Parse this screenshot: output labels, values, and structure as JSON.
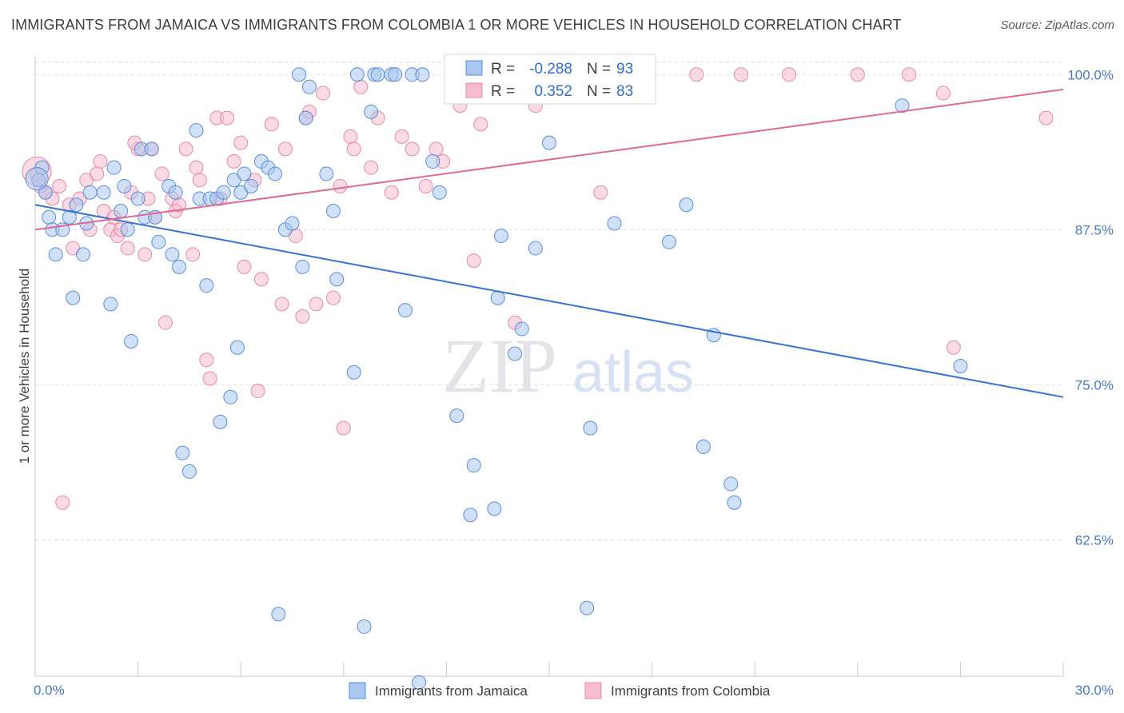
{
  "chart_data": {
    "type": "scatter",
    "title": "IMMIGRANTS FROM JAMAICA VS IMMIGRANTS FROM COLOMBIA 1 OR MORE VEHICLES IN HOUSEHOLD CORRELATION CHART",
    "source": "Source: ZipAtlas.com",
    "xlabel": "",
    "ylabel": "1 or more Vehicles in Household",
    "xlim": [
      0,
      30
    ],
    "ylim": [
      51.5,
      101.5
    ],
    "x_tick_labels": [
      "0.0%",
      "30.0%"
    ],
    "y_ticks": [
      62.5,
      75.0,
      87.5,
      100.0
    ],
    "y_tick_labels": [
      "62.5%",
      "75.0%",
      "87.5%",
      "100.0%"
    ],
    "watermark": {
      "zip": "ZIP",
      "atlas": "atlas"
    },
    "colors": {
      "jamaica_fill": "#a9c6f0",
      "jamaica_stroke": "#5b8fd9",
      "jamaica_line": "#3473d1",
      "colombia_fill": "#f6bccd",
      "colombia_stroke": "#e58aa6",
      "colombia_line": "#e06892",
      "grid": "#dcdce4"
    },
    "legend": {
      "r_label": "R =",
      "n_label": "N =",
      "entries": [
        {
          "r": "-0.288",
          "n": "93"
        },
        {
          "r": "0.352",
          "n": "83"
        }
      ]
    },
    "series": [
      {
        "name": "Immigrants from Jamaica",
        "trend": {
          "x": [
            0,
            30
          ],
          "y": [
            89.5,
            74.0
          ]
        },
        "points": [
          [
            0.1,
            91.5
          ],
          [
            0.3,
            90.5
          ],
          [
            0.4,
            88.5
          ],
          [
            0.5,
            87.5
          ],
          [
            0.6,
            85.5
          ],
          [
            0.8,
            87.5
          ],
          [
            1.0,
            88.5
          ],
          [
            1.1,
            82
          ],
          [
            1.2,
            89.5
          ],
          [
            1.4,
            85.5
          ],
          [
            1.5,
            88
          ],
          [
            1.6,
            90.5
          ],
          [
            2.0,
            90.5
          ],
          [
            2.2,
            81.5
          ],
          [
            2.3,
            92.5
          ],
          [
            2.5,
            89
          ],
          [
            2.6,
            91
          ],
          [
            2.7,
            87.5
          ],
          [
            2.8,
            78.5
          ],
          [
            3.0,
            90
          ],
          [
            3.1,
            94
          ],
          [
            3.2,
            88.5
          ],
          [
            3.4,
            94
          ],
          [
            3.5,
            88.5
          ],
          [
            3.6,
            86.5
          ],
          [
            3.9,
            91
          ],
          [
            4.0,
            85.5
          ],
          [
            4.1,
            90.5
          ],
          [
            4.2,
            84.5
          ],
          [
            4.3,
            69.5
          ],
          [
            4.5,
            68
          ],
          [
            4.7,
            95.5
          ],
          [
            4.8,
            90
          ],
          [
            5.0,
            83
          ],
          [
            5.1,
            90
          ],
          [
            5.3,
            90
          ],
          [
            5.4,
            72
          ],
          [
            5.5,
            90.5
          ],
          [
            5.7,
            74
          ],
          [
            5.8,
            91.5
          ],
          [
            5.9,
            78
          ],
          [
            6.0,
            90.5
          ],
          [
            6.1,
            92
          ],
          [
            6.3,
            91
          ],
          [
            6.6,
            93
          ],
          [
            6.8,
            92.5
          ],
          [
            7.0,
            92
          ],
          [
            7.1,
            56.5
          ],
          [
            7.3,
            87.5
          ],
          [
            7.5,
            88
          ],
          [
            7.7,
            100
          ],
          [
            7.8,
            84.5
          ],
          [
            7.9,
            96.5
          ],
          [
            8.0,
            99
          ],
          [
            8.5,
            92
          ],
          [
            8.7,
            89
          ],
          [
            8.8,
            83.5
          ],
          [
            9.3,
            76
          ],
          [
            9.4,
            100
          ],
          [
            9.6,
            55.5
          ],
          [
            9.8,
            97
          ],
          [
            9.9,
            100
          ],
          [
            10.0,
            100
          ],
          [
            10.4,
            100
          ],
          [
            10.5,
            100
          ],
          [
            10.8,
            81
          ],
          [
            11.0,
            100
          ],
          [
            11.2,
            51
          ],
          [
            11.3,
            100
          ],
          [
            11.6,
            93
          ],
          [
            11.8,
            90.5
          ],
          [
            12.3,
            72.5
          ],
          [
            12.7,
            64.5
          ],
          [
            12.8,
            68.5
          ],
          [
            13.4,
            65
          ],
          [
            13.5,
            82
          ],
          [
            13.6,
            87
          ],
          [
            14.0,
            77.5
          ],
          [
            14.2,
            79.5
          ],
          [
            14.6,
            86
          ],
          [
            15.0,
            94.5
          ],
          [
            16.1,
            57
          ],
          [
            16.2,
            71.5
          ],
          [
            16.9,
            88
          ],
          [
            18.5,
            86.5
          ],
          [
            19.0,
            89.5
          ],
          [
            19.5,
            70
          ],
          [
            19.8,
            79
          ],
          [
            20.3,
            67
          ],
          [
            20.4,
            65.5
          ],
          [
            25.3,
            97.5
          ],
          [
            27.0,
            76.5
          ],
          [
            0.2,
            92.5
          ]
        ]
      },
      {
        "name": "Immigrants from Colombia",
        "trend": {
          "x": [
            0,
            30
          ],
          "y": [
            87.5,
            98.8
          ]
        },
        "points": [
          [
            0.05,
            92
          ],
          [
            0.3,
            90.5
          ],
          [
            0.5,
            90
          ],
          [
            0.7,
            91
          ],
          [
            0.8,
            65.5
          ],
          [
            1.0,
            89.5
          ],
          [
            1.1,
            86
          ],
          [
            1.3,
            90
          ],
          [
            1.5,
            91.5
          ],
          [
            1.6,
            87.5
          ],
          [
            1.8,
            92
          ],
          [
            1.9,
            93
          ],
          [
            2.0,
            89
          ],
          [
            2.2,
            87.5
          ],
          [
            2.3,
            88.5
          ],
          [
            2.4,
            87
          ],
          [
            2.5,
            87.5
          ],
          [
            2.7,
            86
          ],
          [
            2.8,
            90.5
          ],
          [
            3.0,
            94
          ],
          [
            3.2,
            85.5
          ],
          [
            3.3,
            90
          ],
          [
            3.4,
            94
          ],
          [
            3.5,
            88.5
          ],
          [
            3.7,
            92
          ],
          [
            3.8,
            80
          ],
          [
            4.0,
            90
          ],
          [
            4.1,
            89
          ],
          [
            4.2,
            89.5
          ],
          [
            4.4,
            94
          ],
          [
            4.6,
            85.5
          ],
          [
            4.7,
            92.5
          ],
          [
            4.8,
            91.5
          ],
          [
            5.0,
            77
          ],
          [
            5.1,
            75.5
          ],
          [
            5.3,
            96.5
          ],
          [
            5.4,
            90
          ],
          [
            5.6,
            96.5
          ],
          [
            5.8,
            93
          ],
          [
            6.0,
            94.5
          ],
          [
            6.1,
            84.5
          ],
          [
            6.4,
            91.5
          ],
          [
            6.5,
            74.5
          ],
          [
            6.6,
            83.5
          ],
          [
            6.9,
            96
          ],
          [
            7.2,
            81.5
          ],
          [
            7.3,
            94
          ],
          [
            7.6,
            87
          ],
          [
            7.8,
            80.5
          ],
          [
            8.0,
            97
          ],
          [
            8.2,
            81.5
          ],
          [
            8.4,
            98.5
          ],
          [
            8.7,
            82
          ],
          [
            8.9,
            91
          ],
          [
            9.0,
            71.5
          ],
          [
            9.2,
            95
          ],
          [
            9.5,
            99
          ],
          [
            9.8,
            92.5
          ],
          [
            10.0,
            96.5
          ],
          [
            10.4,
            90.5
          ],
          [
            10.7,
            95
          ],
          [
            11.0,
            94
          ],
          [
            11.4,
            91
          ],
          [
            11.7,
            94
          ],
          [
            11.9,
            93
          ],
          [
            12.4,
            97.5
          ],
          [
            12.8,
            85
          ],
          [
            13.0,
            96
          ],
          [
            14.0,
            80
          ],
          [
            14.6,
            97.5
          ],
          [
            16.5,
            90.5
          ],
          [
            19.3,
            100
          ],
          [
            20.6,
            100
          ],
          [
            22.0,
            100
          ],
          [
            24.0,
            100
          ],
          [
            25.5,
            100
          ],
          [
            26.5,
            98.5
          ],
          [
            26.8,
            78
          ],
          [
            29.5,
            96.5
          ],
          [
            0.15,
            91
          ],
          [
            2.9,
            94.5
          ],
          [
            7.9,
            96.5
          ],
          [
            9.3,
            94
          ]
        ]
      }
    ]
  }
}
